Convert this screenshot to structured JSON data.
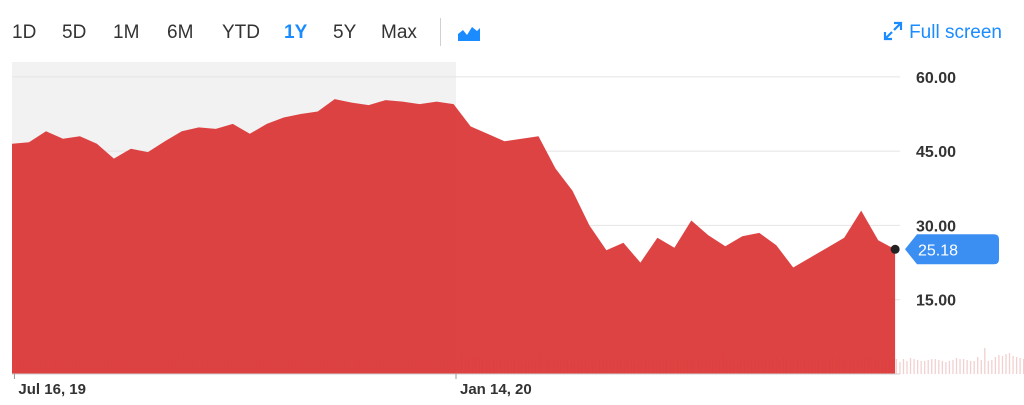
{
  "toolbar": {
    "ranges": [
      "1D",
      "5D",
      "1M",
      "6M",
      "YTD",
      "1Y",
      "5Y",
      "Max"
    ],
    "active_range": "1Y",
    "chart_type_icon": "area-chart-icon",
    "fullscreen_icon": "expand-arrows-icon",
    "fullscreen_label": "Full screen"
  },
  "colors": {
    "area_fill": "#dc3535",
    "volume_bar": "#f2d0d0",
    "shade": "#f2f2f2",
    "accent": "#1a8cff",
    "price_tag": "#3b8ff3"
  },
  "chart_data": {
    "type": "area",
    "title": "",
    "xlabel": "",
    "ylabel": "",
    "ylim": [
      0,
      63
    ],
    "y_ticks": [
      "60.00",
      "45.00",
      "30.00",
      "15.00"
    ],
    "x_labels": [
      {
        "date": "2019-07-16",
        "label": "Jul 16, 19"
      },
      {
        "date": "2020-01-14",
        "label": "Jan 14, 20"
      }
    ],
    "x_range": [
      "2019-07-15",
      "2020-07-15"
    ],
    "shaded_until": "2020-01-14",
    "last_price": 25.18,
    "last_price_label": "25.18",
    "series": [
      {
        "points": [
          [
            "2019-07-15",
            46.5
          ],
          [
            "2019-07-22",
            46.8
          ],
          [
            "2019-07-29",
            49.0
          ],
          [
            "2019-08-05",
            47.5
          ],
          [
            "2019-08-12",
            48.0
          ],
          [
            "2019-08-19",
            46.5
          ],
          [
            "2019-08-26",
            43.5
          ],
          [
            "2019-09-02",
            45.5
          ],
          [
            "2019-09-09",
            44.8
          ],
          [
            "2019-09-16",
            47.0
          ],
          [
            "2019-09-23",
            49.0
          ],
          [
            "2019-09-30",
            49.8
          ],
          [
            "2019-10-07",
            49.5
          ],
          [
            "2019-10-14",
            50.5
          ],
          [
            "2019-10-21",
            48.5
          ],
          [
            "2019-10-28",
            50.5
          ],
          [
            "2019-11-04",
            51.8
          ],
          [
            "2019-11-11",
            52.5
          ],
          [
            "2019-11-18",
            53.0
          ],
          [
            "2019-11-25",
            55.5
          ],
          [
            "2019-12-02",
            54.8
          ],
          [
            "2019-12-09",
            54.3
          ],
          [
            "2019-12-16",
            55.3
          ],
          [
            "2019-12-23",
            55.0
          ],
          [
            "2019-12-30",
            54.5
          ],
          [
            "2020-01-06",
            55.0
          ],
          [
            "2020-01-13",
            54.5
          ],
          [
            "2020-01-20",
            50.0
          ],
          [
            "2020-01-27",
            48.5
          ],
          [
            "2020-02-03",
            47.0
          ],
          [
            "2020-02-10",
            47.5
          ],
          [
            "2020-02-17",
            48.0
          ],
          [
            "2020-02-24",
            41.5
          ],
          [
            "2020-03-02",
            37.0
          ],
          [
            "2020-03-09",
            30.0
          ],
          [
            "2020-03-16",
            25.0
          ],
          [
            "2020-03-23",
            26.5
          ],
          [
            "2020-03-30",
            22.5
          ],
          [
            "2020-04-06",
            27.5
          ],
          [
            "2020-04-13",
            25.5
          ],
          [
            "2020-04-20",
            31.0
          ],
          [
            "2020-04-27",
            28.0
          ],
          [
            "2020-05-04",
            25.8
          ],
          [
            "2020-05-11",
            27.8
          ],
          [
            "2020-05-18",
            28.5
          ],
          [
            "2020-05-25",
            26.0
          ],
          [
            "2020-06-01",
            21.5
          ],
          [
            "2020-06-08",
            23.5
          ],
          [
            "2020-06-15",
            25.5
          ],
          [
            "2020-06-22",
            27.5
          ],
          [
            "2020-06-29",
            33.0
          ],
          [
            "2020-07-06",
            27.0
          ],
          [
            "2020-07-13",
            25.18
          ]
        ]
      }
    ],
    "volume": {
      "start": "2019-07-15",
      "step_days": 1.457,
      "values": [
        22,
        17,
        15,
        14,
        17,
        16,
        15,
        14,
        12,
        12,
        15,
        14,
        16,
        14,
        12,
        13,
        15,
        15,
        12,
        13,
        11,
        12,
        13,
        11,
        12,
        13,
        15,
        16,
        14,
        13,
        15,
        15,
        14,
        13,
        13,
        11,
        13,
        12,
        15,
        15,
        12,
        15,
        14,
        15,
        13,
        12,
        15,
        22,
        13,
        13,
        13,
        14,
        15,
        12,
        15,
        12,
        13,
        14,
        16,
        14,
        12,
        14,
        13,
        12,
        12,
        13,
        12,
        14,
        15,
        13,
        13,
        17,
        14,
        14,
        13,
        14,
        11,
        18,
        16,
        17,
        12,
        15,
        16,
        12,
        14,
        14,
        16,
        16,
        13,
        16,
        17,
        15,
        15,
        14,
        16,
        15,
        13,
        13,
        14,
        13,
        13,
        13,
        12,
        13,
        14,
        13,
        12,
        11,
        12,
        13,
        12,
        12,
        13,
        16,
        18,
        17,
        14,
        13,
        15,
        14,
        17,
        13,
        15,
        14,
        14,
        13,
        15,
        21,
        12,
        15,
        18,
        17,
        16,
        15,
        14,
        14,
        16,
        13,
        14,
        11,
        13,
        15,
        14,
        14,
        12,
        13,
        12,
        14,
        13,
        20,
        12,
        12,
        13,
        15,
        15,
        12,
        14,
        16,
        12,
        13,
        12,
        12,
        14,
        11,
        11,
        16,
        16,
        18,
        15,
        14,
        13,
        13,
        13,
        13,
        14,
        16,
        12,
        12,
        14,
        12,
        13,
        12,
        14,
        17,
        18,
        15,
        14,
        13,
        14,
        12,
        15,
        14,
        17,
        18,
        15,
        13,
        15,
        13,
        14,
        15,
        16,
        22,
        13,
        12,
        12,
        11,
        14,
        13,
        14,
        16,
        14,
        15,
        15,
        16,
        13,
        15,
        15,
        14,
        17,
        16,
        14,
        15,
        15,
        17,
        13,
        13,
        14,
        12,
        14,
        13,
        17,
        16,
        15,
        14,
        16,
        14,
        13,
        14,
        16,
        15,
        15,
        16,
        17,
        15,
        14,
        15,
        12,
        14,
        13,
        14,
        15,
        12,
        15,
        13,
        16,
        15,
        14,
        13,
        13,
        14,
        15,
        15,
        14,
        13,
        12,
        13,
        14,
        16,
        15,
        15,
        14,
        13,
        13,
        17,
        14,
        26,
        13,
        14,
        17,
        19,
        18,
        20,
        21,
        18,
        17,
        16,
        15,
        18,
        17,
        19,
        21,
        18,
        18,
        17,
        20,
        22,
        19,
        20,
        22,
        21,
        24,
        25,
        29,
        26,
        19,
        21,
        18,
        19,
        18,
        17,
        16,
        18,
        20,
        21,
        22,
        17,
        16,
        19,
        20,
        18,
        17,
        18,
        17,
        19,
        18,
        17,
        20,
        21,
        17,
        17,
        18,
        17,
        16,
        19,
        23,
        19,
        18,
        17,
        16,
        17,
        16,
        15,
        16,
        17,
        15,
        16,
        16,
        19,
        18,
        18,
        19,
        20,
        23,
        28,
        27,
        23,
        19,
        19,
        18,
        16,
        16,
        19,
        20,
        21,
        18,
        17,
        18,
        16,
        17,
        19,
        27,
        23,
        21,
        20,
        18,
        17,
        23,
        27,
        26,
        21,
        20,
        18,
        17,
        16,
        16,
        17,
        20,
        21,
        19,
        19,
        23,
        19,
        17,
        16,
        18,
        23,
        30,
        19,
        16,
        17,
        15,
        13
      ]
    }
  }
}
